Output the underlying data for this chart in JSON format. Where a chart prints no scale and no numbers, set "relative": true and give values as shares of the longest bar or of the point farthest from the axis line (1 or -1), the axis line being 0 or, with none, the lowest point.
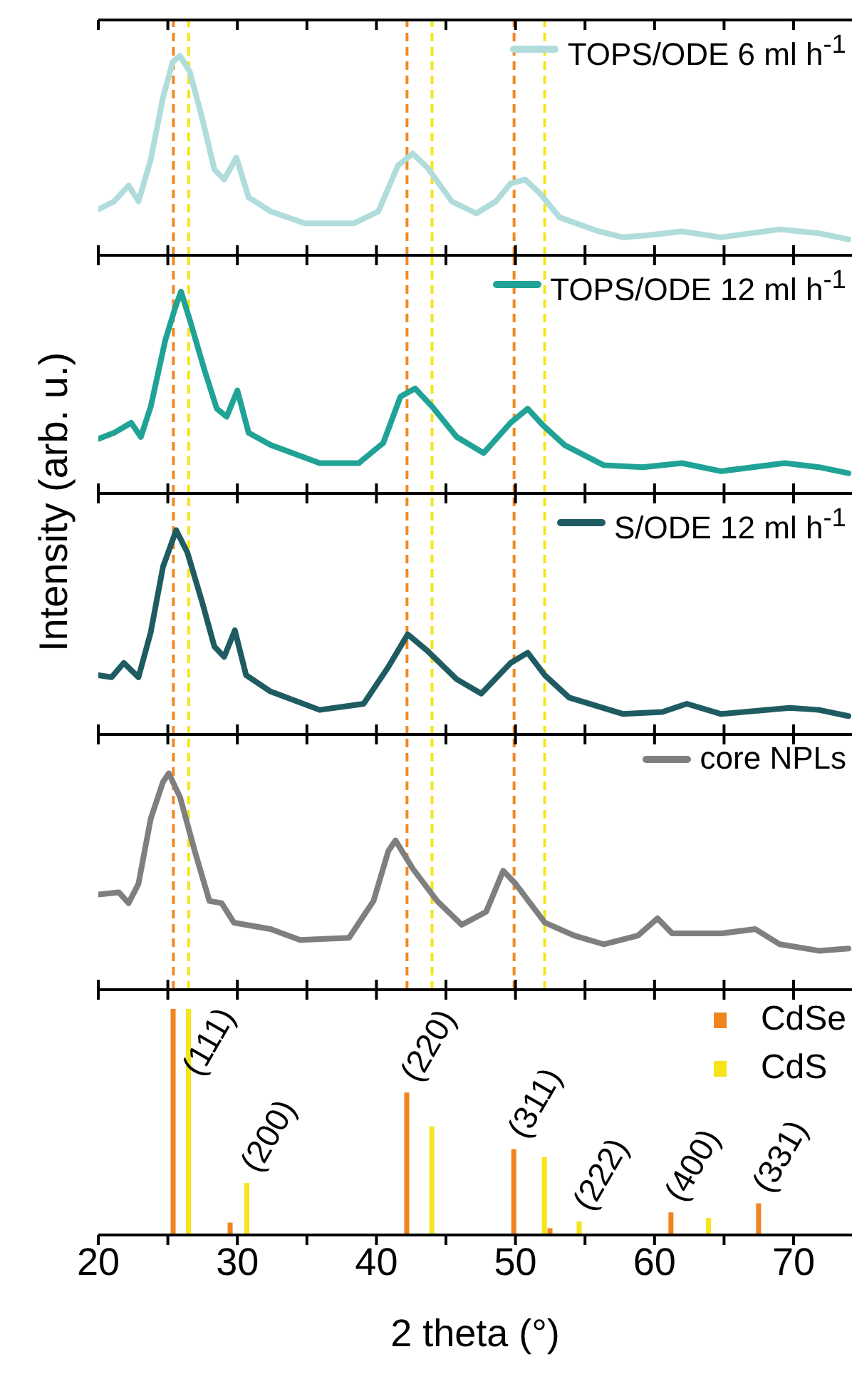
{
  "chart_data": [
    {
      "type": "line",
      "relative": true,
      "xlim": [
        20,
        74.2
      ],
      "xticks": [
        20,
        {
          "value": 25,
          "label": null
        },
        30,
        {
          "value": 35,
          "label": null
        },
        40,
        {
          "value": 45,
          "label": null
        },
        50,
        {
          "value": 55,
          "label": null
        },
        60,
        {
          "value": 65,
          "label": null
        },
        70
      ],
      "tick_labels": false,
      "legend": "top right",
      "series": [
        {
          "name": "TOPS/ODE 6 ml h$^{-1}$",
          "color": "#b0dcdc",
          "x": [
            20.0,
            21.13,
            22.18,
            22.89,
            23.77,
            24.65,
            25.35,
            25.88,
            26.58,
            27.46,
            28.35,
            29.05,
            29.93,
            30.81,
            32.39,
            34.86,
            38.38,
            40.14,
            41.55,
            42.61,
            43.66,
            45.42,
            47.18,
            48.59,
            49.65,
            50.7,
            51.76,
            53.17,
            55.99,
            57.75,
            59.51,
            61.97,
            64.79,
            69.01,
            71.83,
            73.94
          ],
          "values": [
            0.23,
            0.27,
            0.35,
            0.27,
            0.48,
            0.79,
            0.97,
            1.0,
            0.92,
            0.69,
            0.43,
            0.38,
            0.49,
            0.29,
            0.22,
            0.16,
            0.16,
            0.22,
            0.45,
            0.51,
            0.44,
            0.27,
            0.21,
            0.27,
            0.36,
            0.38,
            0.31,
            0.19,
            0.12,
            0.09,
            0.1,
            0.12,
            0.09,
            0.13,
            0.11,
            0.08
          ]
        }
      ],
      "ref_lines": [
        {
          "axis": "x",
          "value": 25.4,
          "color": "#f08a24",
          "line_style": "dashed"
        },
        {
          "axis": "x",
          "value": 42.2,
          "color": "#f08a24",
          "line_style": "dashed"
        },
        {
          "axis": "x",
          "value": 49.9,
          "color": "#f08a24",
          "line_style": "dashed"
        },
        {
          "axis": "x",
          "value": 26.5,
          "color": "#f5e51a",
          "line_style": "dashed"
        },
        {
          "axis": "x",
          "value": 44.0,
          "color": "#f5e51a",
          "line_style": "dashed"
        },
        {
          "axis": "x",
          "value": 52.1,
          "color": "#f5e51a",
          "line_style": "dashed"
        }
      ]
    },
    {
      "type": "line",
      "relative": true,
      "ylabel": "Intensity (arb. u.)",
      "xlim": [
        20,
        74.2
      ],
      "xticks": [
        20,
        {
          "value": 25,
          "label": null
        },
        30,
        {
          "value": 35,
          "label": null
        },
        40,
        {
          "value": 45,
          "label": null
        },
        50,
        {
          "value": 55,
          "label": null
        },
        60,
        {
          "value": 65,
          "label": null
        },
        70
      ],
      "tick_labels": false,
      "legend": "top right",
      "series": [
        {
          "name": "TOPS/ODE 12 ml h$^{-1}$",
          "color": "#20a396",
          "x": [
            20.0,
            21.13,
            22.36,
            23.06,
            23.77,
            24.82,
            25.53,
            25.95,
            26.58,
            27.64,
            28.52,
            29.23,
            30.0,
            30.81,
            32.39,
            35.92,
            38.73,
            40.49,
            41.73,
            42.78,
            44.01,
            45.77,
            47.71,
            49.65,
            50.88,
            51.94,
            53.52,
            56.34,
            59.15,
            61.97,
            64.79,
            69.37,
            71.83,
            73.94
          ],
          "values": [
            0.27,
            0.3,
            0.35,
            0.28,
            0.43,
            0.76,
            0.92,
            1.0,
            0.86,
            0.61,
            0.42,
            0.38,
            0.51,
            0.3,
            0.24,
            0.15,
            0.15,
            0.25,
            0.48,
            0.52,
            0.43,
            0.28,
            0.2,
            0.35,
            0.42,
            0.34,
            0.24,
            0.14,
            0.13,
            0.15,
            0.11,
            0.15,
            0.13,
            0.1
          ]
        }
      ],
      "ref_lines": [
        {
          "axis": "x",
          "value": 25.4,
          "color": "#f08a24",
          "line_style": "dashed"
        },
        {
          "axis": "x",
          "value": 42.2,
          "color": "#f08a24",
          "line_style": "dashed"
        },
        {
          "axis": "x",
          "value": 49.9,
          "color": "#f08a24",
          "line_style": "dashed"
        },
        {
          "axis": "x",
          "value": 26.5,
          "color": "#f5e51a",
          "line_style": "dashed"
        },
        {
          "axis": "x",
          "value": 44.0,
          "color": "#f5e51a",
          "line_style": "dashed"
        },
        {
          "axis": "x",
          "value": 52.1,
          "color": "#f5e51a",
          "line_style": "dashed"
        }
      ]
    },
    {
      "type": "line",
      "relative": true,
      "xlim": [
        20,
        74.2
      ],
      "xticks": [
        20,
        {
          "value": 25,
          "label": null
        },
        30,
        {
          "value": 35,
          "label": null
        },
        40,
        {
          "value": 45,
          "label": null
        },
        50,
        {
          "value": 55,
          "label": null
        },
        60,
        {
          "value": 65,
          "label": null
        },
        70
      ],
      "tick_labels": false,
      "legend": "top right",
      "series": [
        {
          "name": "S/ODE 12 ml h$^{-1}$",
          "color": "#1f5c62",
          "x": [
            20.0,
            20.95,
            21.83,
            22.89,
            23.77,
            24.65,
            25.6,
            26.41,
            27.46,
            28.35,
            29.05,
            29.82,
            30.63,
            32.39,
            35.92,
            39.08,
            40.85,
            42.25,
            43.66,
            45.77,
            47.54,
            49.65,
            50.88,
            52.11,
            53.87,
            57.75,
            60.56,
            62.32,
            64.79,
            69.72,
            71.83,
            73.94
          ],
          "values": [
            0.29,
            0.28,
            0.35,
            0.28,
            0.5,
            0.82,
            1.0,
            0.89,
            0.65,
            0.43,
            0.38,
            0.51,
            0.29,
            0.21,
            0.12,
            0.15,
            0.33,
            0.49,
            0.41,
            0.27,
            0.2,
            0.35,
            0.4,
            0.29,
            0.18,
            0.1,
            0.11,
            0.15,
            0.1,
            0.13,
            0.12,
            0.09
          ]
        }
      ],
      "ref_lines": [
        {
          "axis": "x",
          "value": 25.4,
          "color": "#f08a24",
          "line_style": "dashed"
        },
        {
          "axis": "x",
          "value": 42.2,
          "color": "#f08a24",
          "line_style": "dashed"
        },
        {
          "axis": "x",
          "value": 49.9,
          "color": "#f08a24",
          "line_style": "dashed"
        },
        {
          "axis": "x",
          "value": 26.5,
          "color": "#f5e51a",
          "line_style": "dashed"
        },
        {
          "axis": "x",
          "value": 44.0,
          "color": "#f5e51a",
          "line_style": "dashed"
        },
        {
          "axis": "x",
          "value": 52.1,
          "color": "#f5e51a",
          "line_style": "dashed"
        }
      ]
    },
    {
      "type": "line",
      "relative": true,
      "xlim": [
        20,
        74.2
      ],
      "xticks": [
        20,
        {
          "value": 25,
          "label": null
        },
        30,
        {
          "value": 35,
          "label": null
        },
        40,
        {
          "value": 45,
          "label": null
        },
        50,
        {
          "value": 55,
          "label": null
        },
        60,
        {
          "value": 65,
          "label": null
        },
        70
      ],
      "tick_labels": false,
      "legend": "top right",
      "series": [
        {
          "name": "core NPLs",
          "color": "#7f7f7f",
          "x": [
            20.0,
            21.48,
            22.18,
            22.89,
            23.77,
            24.65,
            25.07,
            25.88,
            26.94,
            27.99,
            28.87,
            29.75,
            32.39,
            34.51,
            38.03,
            39.79,
            40.85,
            41.37,
            42.61,
            44.37,
            46.13,
            47.89,
            49.12,
            50.0,
            52.11,
            54.23,
            56.34,
            58.8,
            60.21,
            61.27,
            64.79,
            67.25,
            69.01,
            71.83,
            73.94
          ],
          "values": [
            0.44,
            0.45,
            0.4,
            0.49,
            0.79,
            0.96,
            1.0,
            0.89,
            0.64,
            0.41,
            0.4,
            0.31,
            0.28,
            0.23,
            0.24,
            0.41,
            0.64,
            0.69,
            0.56,
            0.41,
            0.3,
            0.36,
            0.55,
            0.49,
            0.31,
            0.25,
            0.21,
            0.25,
            0.33,
            0.26,
            0.26,
            0.28,
            0.21,
            0.18,
            0.19
          ]
        }
      ],
      "ref_lines": [
        {
          "axis": "x",
          "value": 25.4,
          "color": "#f08a24",
          "line_style": "dashed"
        },
        {
          "axis": "x",
          "value": 42.2,
          "color": "#f08a24",
          "line_style": "dashed"
        },
        {
          "axis": "x",
          "value": 49.9,
          "color": "#f08a24",
          "line_style": "dashed"
        },
        {
          "axis": "x",
          "value": 26.5,
          "color": "#f5e51a",
          "line_style": "dashed"
        },
        {
          "axis": "x",
          "value": 44.0,
          "color": "#f5e51a",
          "line_style": "dashed"
        },
        {
          "axis": "x",
          "value": 52.1,
          "color": "#f5e51a",
          "line_style": "dashed"
        }
      ]
    },
    {
      "type": "bar",
      "relative": true,
      "xlabel": "2 theta (°)",
      "xlim": [
        20,
        74.2
      ],
      "xticks": [
        20,
        {
          "value": 25,
          "label": null
        },
        30,
        {
          "value": 35,
          "label": null
        },
        40,
        {
          "value": 45,
          "label": null
        },
        50,
        {
          "value": 55,
          "label": null
        },
        60,
        {
          "value": 65,
          "label": null
        },
        70
      ],
      "tick_labels": "x",
      "legend": "top right",
      "series": [
        {
          "name": "CdSe",
          "color": "#f0851e",
          "x": [
            25.4,
            29.5,
            42.2,
            49.9,
            52.5,
            61.2,
            67.5
          ],
          "values": [
            1.0,
            0.055,
            0.63,
            0.38,
            0.03,
            0.1,
            0.14
          ]
        },
        {
          "name": "CdS",
          "color": "#f5e51a",
          "x": [
            26.5,
            30.7,
            44.0,
            52.1,
            54.6,
            63.9
          ],
          "values": [
            1.0,
            0.23,
            0.48,
            0.345,
            0.06,
            0.075
          ]
        }
      ],
      "annotations": [
        {
          "text": "(111)",
          "x": 26.5,
          "y": 1.0
        },
        {
          "text": "(200)",
          "x": 30.7,
          "y": 0.23
        },
        {
          "text": "(220)",
          "x": 42.2,
          "y": 0.63
        },
        {
          "text": "(311)",
          "x": 49.9,
          "y": 0.38
        },
        {
          "text": "(222)",
          "x": 54.6,
          "y": 0.06
        },
        {
          "text": "(400)",
          "x": 61.2,
          "y": 0.1
        },
        {
          "text": "(331)",
          "x": 67.5,
          "y": 0.14
        }
      ]
    }
  ]
}
